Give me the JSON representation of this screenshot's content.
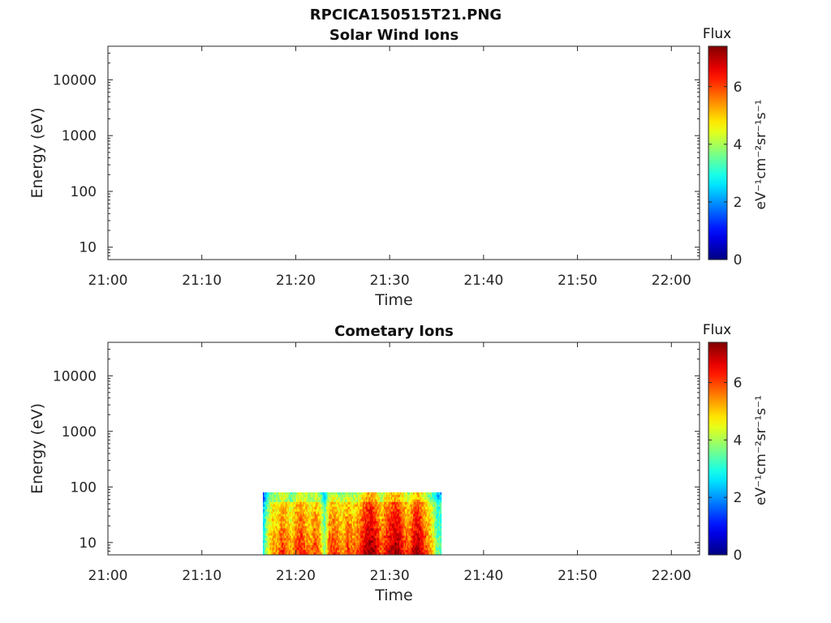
{
  "figure": {
    "title": "RPCICA150515T21.PNG"
  },
  "chart_data": [
    {
      "type": "heatmap",
      "title": "Solar Wind Ions",
      "xlabel": "Time",
      "ylabel": "Energy (eV)",
      "x_ticks": [
        "21:00",
        "21:10",
        "21:20",
        "21:30",
        "21:40",
        "21:50",
        "22:00"
      ],
      "xlim_minutes": [
        0,
        63
      ],
      "y_scale": "log",
      "y_ticks": [
        "10",
        "100",
        "1000",
        "10000"
      ],
      "ylim": [
        6,
        40000
      ],
      "colorbar": {
        "label": "Flux",
        "units": "eV⁻¹cm⁻²sr⁻¹s⁻¹",
        "ticks": [
          "0",
          "2",
          "4",
          "6"
        ],
        "range": [
          0,
          7.4
        ],
        "colormap": "jet"
      },
      "data": "empty"
    },
    {
      "type": "heatmap",
      "title": "Cometary Ions",
      "xlabel": "Time",
      "ylabel": "Energy (eV)",
      "x_ticks": [
        "21:00",
        "21:10",
        "21:20",
        "21:30",
        "21:40",
        "21:50",
        "22:00"
      ],
      "xlim_minutes": [
        0,
        63
      ],
      "y_scale": "log",
      "y_ticks": [
        "10",
        "100",
        "1000",
        "10000"
      ],
      "ylim": [
        6,
        40000
      ],
      "colorbar": {
        "label": "Flux",
        "units": "eV⁻¹cm⁻²sr⁻¹s⁻¹",
        "ticks": [
          "0",
          "2",
          "4",
          "6"
        ],
        "range": [
          0,
          7.4
        ],
        "colormap": "jet"
      },
      "data_region": {
        "time_minutes": [
          16.5,
          35.5
        ],
        "energy_eV": [
          6,
          80
        ]
      },
      "flux_profile": [
        {
          "t": 16.5,
          "v": 2.8
        },
        {
          "t": 17.0,
          "v": 4.5
        },
        {
          "t": 17.5,
          "v": 5.4
        },
        {
          "t": 18.0,
          "v": 5.2
        },
        {
          "t": 18.5,
          "v": 6.0
        },
        {
          "t": 19.0,
          "v": 5.5
        },
        {
          "t": 19.5,
          "v": 5.0
        },
        {
          "t": 20.0,
          "v": 5.8
        },
        {
          "t": 20.5,
          "v": 6.2
        },
        {
          "t": 21.0,
          "v": 5.6
        },
        {
          "t": 21.5,
          "v": 5.3
        },
        {
          "t": 22.0,
          "v": 5.9
        },
        {
          "t": 22.5,
          "v": 5.4
        },
        {
          "t": 23.0,
          "v": 3.6
        },
        {
          "t": 23.5,
          "v": 5.7
        },
        {
          "t": 24.0,
          "v": 6.0
        },
        {
          "t": 24.5,
          "v": 5.5
        },
        {
          "t": 25.0,
          "v": 5.3
        },
        {
          "t": 25.5,
          "v": 6.0
        },
        {
          "t": 26.0,
          "v": 5.4
        },
        {
          "t": 26.5,
          "v": 5.8
        },
        {
          "t": 27.0,
          "v": 6.3
        },
        {
          "t": 27.5,
          "v": 6.9
        },
        {
          "t": 28.0,
          "v": 7.1
        },
        {
          "t": 28.5,
          "v": 6.6
        },
        {
          "t": 29.0,
          "v": 5.7
        },
        {
          "t": 29.5,
          "v": 6.2
        },
        {
          "t": 30.0,
          "v": 6.6
        },
        {
          "t": 30.5,
          "v": 7.0
        },
        {
          "t": 31.0,
          "v": 6.8
        },
        {
          "t": 31.5,
          "v": 6.0
        },
        {
          "t": 32.0,
          "v": 5.6
        },
        {
          "t": 32.5,
          "v": 6.6
        },
        {
          "t": 33.0,
          "v": 7.0
        },
        {
          "t": 33.5,
          "v": 6.2
        },
        {
          "t": 34.0,
          "v": 5.5
        },
        {
          "t": 34.5,
          "v": 4.8
        },
        {
          "t": 35.0,
          "v": 3.5
        }
      ]
    }
  ]
}
